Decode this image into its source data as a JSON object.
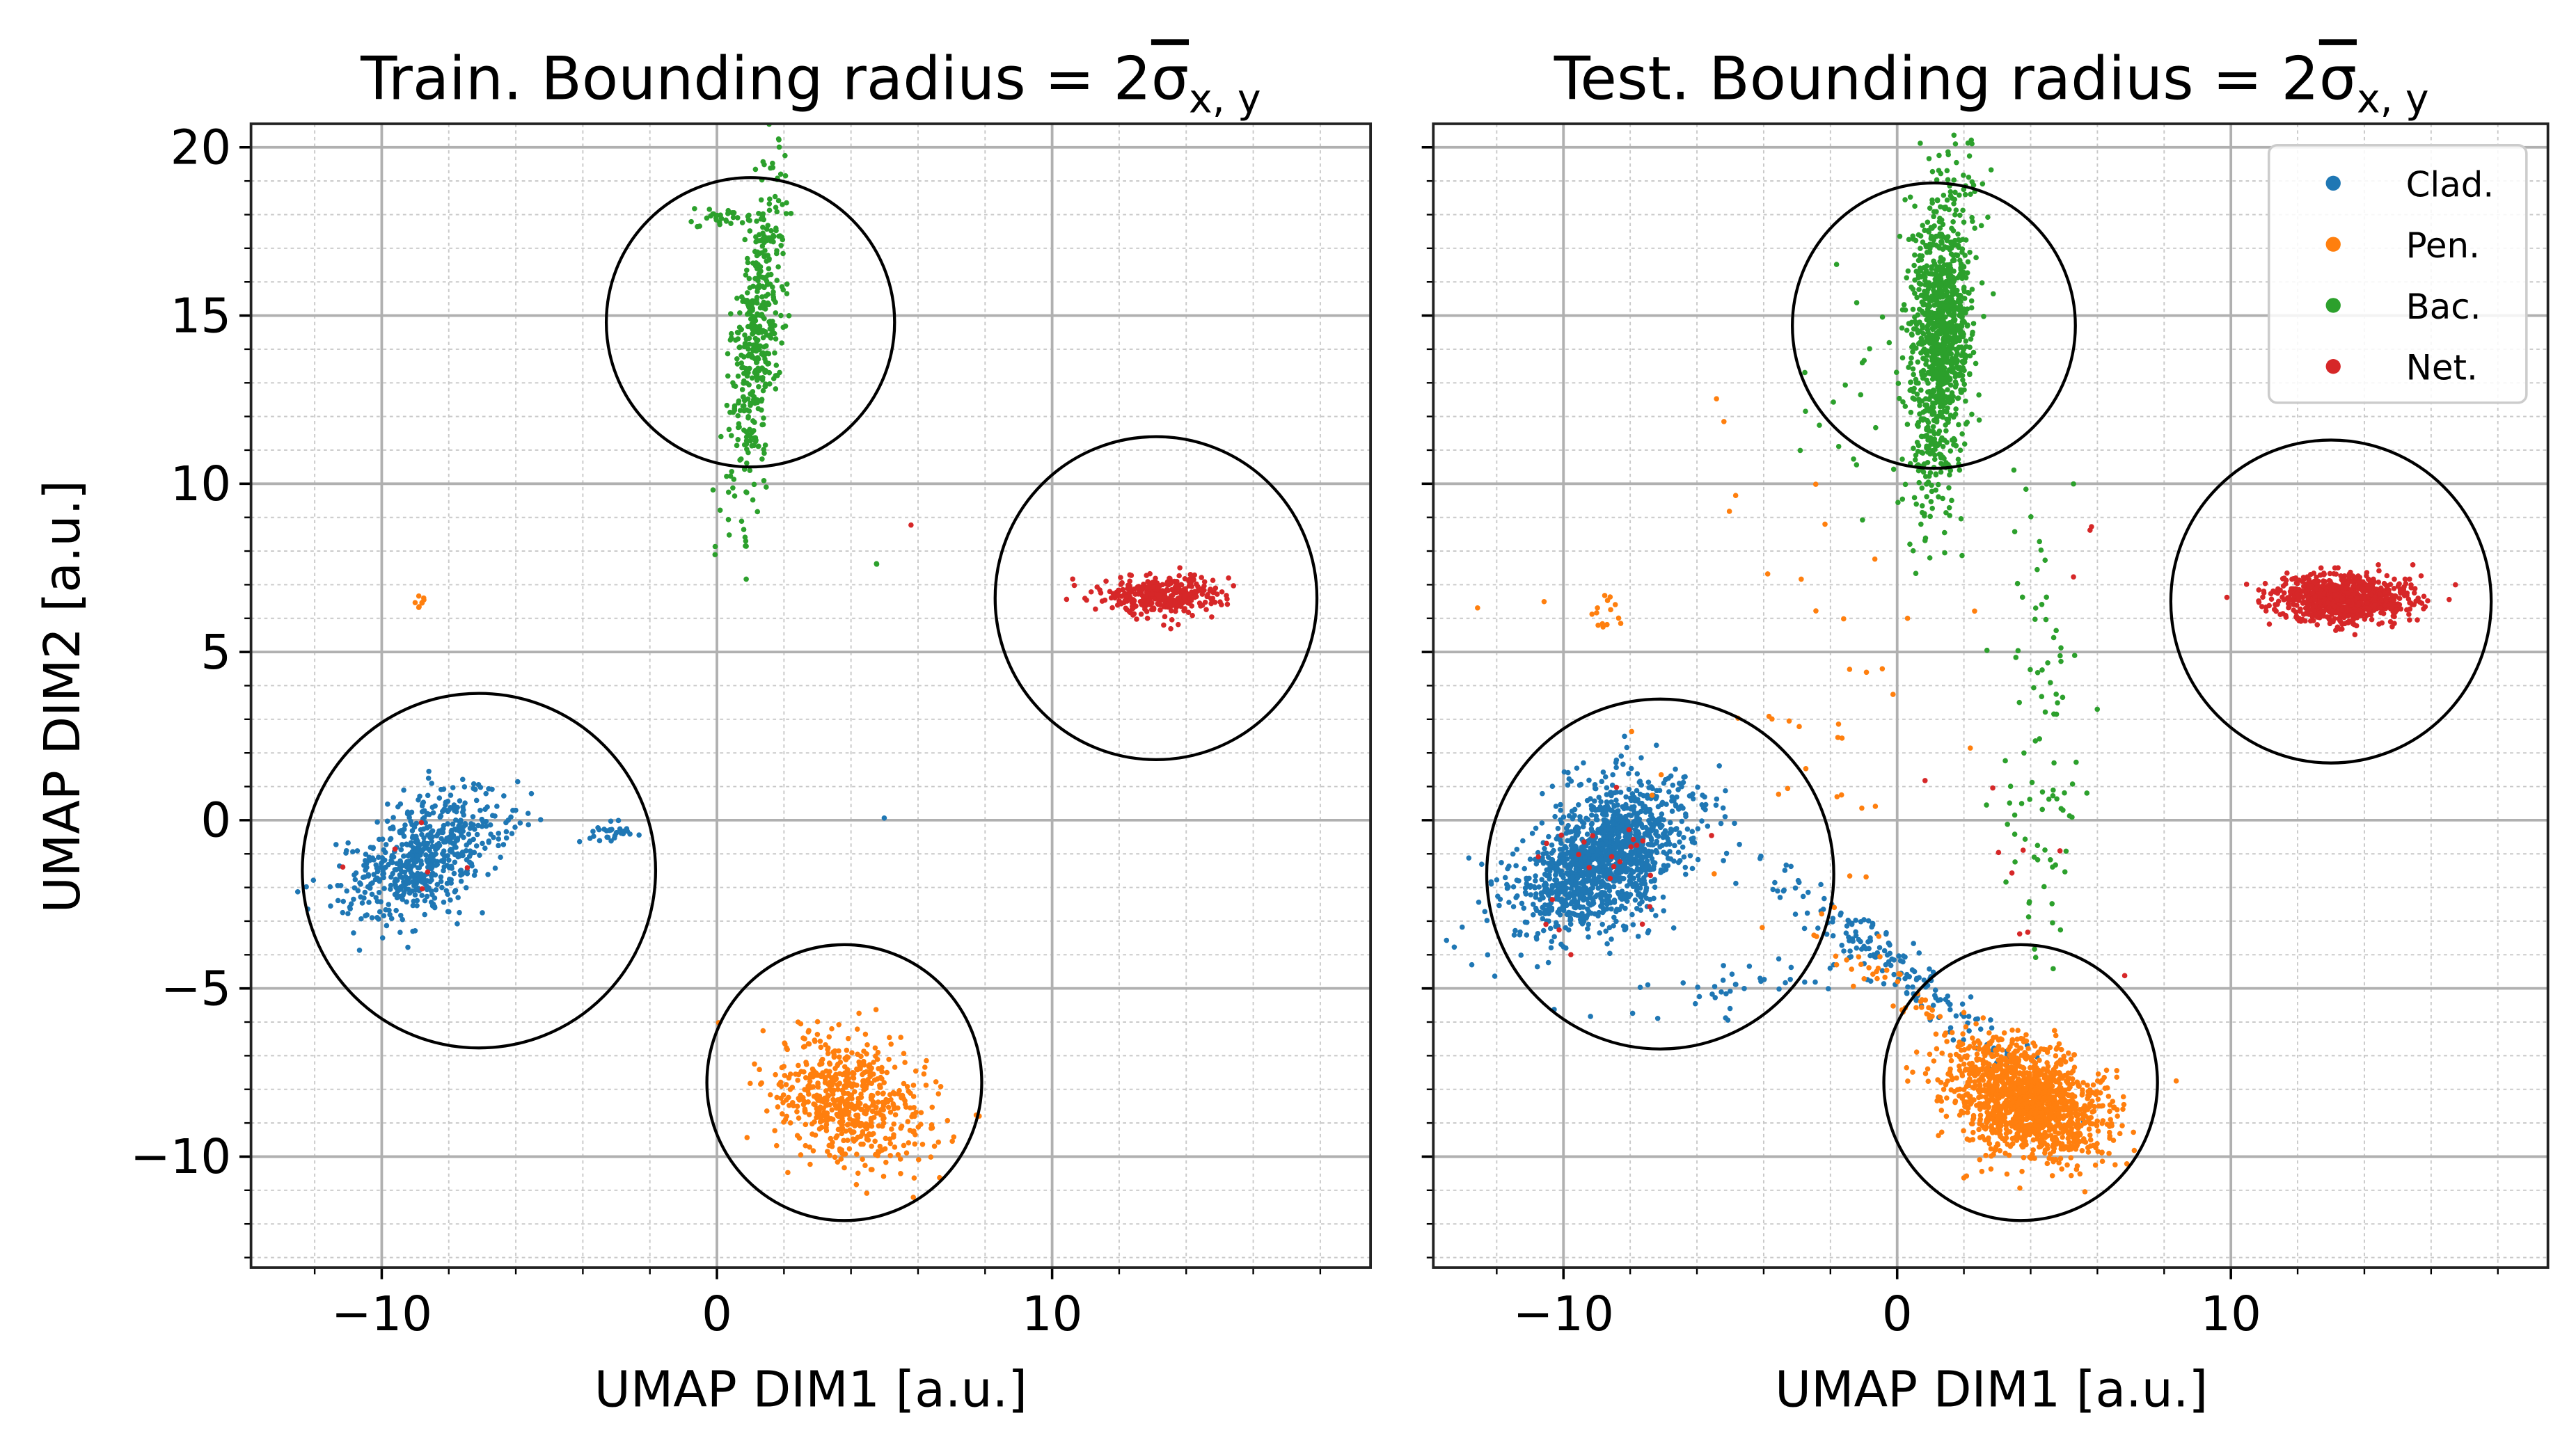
{
  "chart_data": [
    {
      "type": "scatter",
      "panel": "train",
      "title": {
        "text": "Train. Bounding radius = 2",
        "symbol": "σ",
        "subscript": "x, y"
      },
      "xlabel": "UMAP DIM1 [a.u.]",
      "ylabel": "UMAP DIM2 [a.u.]",
      "xlim": [
        -13.9,
        19.5
      ],
      "ylim": [
        -13.3,
        20.7
      ],
      "xticks": [
        -10,
        0,
        10
      ],
      "xtick_labels": [
        "−10",
        "0",
        "10"
      ],
      "yticks": [
        -10,
        -5,
        0,
        5,
        10,
        15,
        20
      ],
      "ytick_labels": [
        "−10",
        "−5",
        "0",
        "5",
        "10",
        "15",
        "20"
      ],
      "grid": {
        "major": true,
        "minor": true,
        "x_minor_step": 2,
        "y_minor_step": 1
      },
      "legend": null,
      "circles": [
        {
          "class": "Bac.",
          "cx": 1.0,
          "cy": 14.8,
          "r": 4.3
        },
        {
          "class": "Net.",
          "cx": 13.1,
          "cy": 6.6,
          "r": 4.8
        },
        {
          "class": "Clad.",
          "cx": -7.1,
          "cy": -1.5,
          "r": 5.27
        },
        {
          "class": "Pen.",
          "cx": 3.8,
          "cy": -7.8,
          "r": 4.1
        }
      ],
      "clusters": [
        {
          "class": "Bac.",
          "cx": 1.2,
          "cy": 14.4,
          "sx": 0.35,
          "sy": 2.3,
          "rot": -5,
          "n": 450
        },
        {
          "class": "Bac.",
          "cx": 0.3,
          "cy": 17.9,
          "sx": 0.5,
          "sy": 0.15,
          "rot": 0,
          "n": 30
        },
        {
          "class": "Net.",
          "cx": 13.3,
          "cy": 6.7,
          "sx": 0.9,
          "sy": 0.3,
          "rot": 0,
          "n": 350
        },
        {
          "class": "Clad.",
          "cx": -8.7,
          "cy": -1.0,
          "sx": 1.4,
          "sy": 0.75,
          "rot": 35,
          "n": 600
        },
        {
          "class": "Clad.",
          "cx": -3.0,
          "cy": -0.4,
          "sx": 0.35,
          "sy": 0.2,
          "rot": 0,
          "n": 30
        },
        {
          "class": "Pen.",
          "cx": 3.9,
          "cy": -8.3,
          "sx": 1.2,
          "sy": 0.85,
          "rot": -25,
          "n": 600
        },
        {
          "class": "Pen.",
          "cx": -8.9,
          "cy": 6.5,
          "sx": 0.1,
          "sy": 0.1,
          "rot": 0,
          "n": 8
        },
        {
          "class": "Net.",
          "cx": 5.8,
          "cy": 8.8,
          "sx": 0.02,
          "sy": 0.02,
          "rot": 0,
          "n": 1
        },
        {
          "class": "Bac.",
          "cx": 4.8,
          "cy": 7.6,
          "sx": 0.03,
          "sy": 0.03,
          "rot": 0,
          "n": 2
        },
        {
          "class": "Clad.",
          "cx": 5.0,
          "cy": 0.1,
          "sx": 0.02,
          "sy": 0.02,
          "rot": 0,
          "n": 1
        },
        {
          "class": "Net.",
          "cx": -9.0,
          "cy": -1.0,
          "sx": 1.0,
          "sy": 0.8,
          "rot": 0,
          "n": 6
        }
      ]
    },
    {
      "type": "scatter",
      "panel": "test",
      "title": {
        "text": "Test. Bounding radius = 2",
        "symbol": "σ",
        "subscript": "x, y"
      },
      "xlabel": "UMAP DIM1 [a.u.]",
      "ylabel": "",
      "xlim": [
        -13.9,
        19.5
      ],
      "ylim": [
        -13.3,
        20.7
      ],
      "xticks": [
        -10,
        0,
        10
      ],
      "xtick_labels": [
        "−10",
        "0",
        "10"
      ],
      "yticks": [
        -10,
        -5,
        0,
        5,
        10,
        15,
        20
      ],
      "ytick_labels": [],
      "grid": {
        "major": true,
        "minor": true,
        "x_minor_step": 2,
        "y_minor_step": 1
      },
      "legend": {
        "placement": "top-right",
        "entries": [
          "Clad.",
          "Pen.",
          "Bac.",
          "Net."
        ]
      },
      "circles": [
        {
          "class": "Bac.",
          "cx": 1.1,
          "cy": 14.7,
          "r": 4.24
        },
        {
          "class": "Net.",
          "cx": 13.0,
          "cy": 6.5,
          "r": 4.8
        },
        {
          "class": "Clad.",
          "cx": -7.1,
          "cy": -1.6,
          "r": 5.2
        },
        {
          "class": "Pen.",
          "cx": 3.7,
          "cy": -7.8,
          "r": 4.1
        }
      ],
      "clusters": [
        {
          "class": "Bac.",
          "cx": 1.3,
          "cy": 14.4,
          "sx": 0.45,
          "sy": 2.3,
          "rot": -3,
          "n": 1100
        },
        {
          "class": "Net.",
          "cx": 13.3,
          "cy": 6.6,
          "sx": 1.0,
          "sy": 0.35,
          "rot": 0,
          "n": 900
        },
        {
          "class": "Clad.",
          "cx": -8.8,
          "cy": -1.1,
          "sx": 1.4,
          "sy": 0.85,
          "rot": 35,
          "n": 1400
        },
        {
          "class": "Clad.",
          "cx": -0.5,
          "cy": -4.0,
          "sx": 2.6,
          "sy": 0.35,
          "rot": -38,
          "n": 180
        },
        {
          "class": "Clad.",
          "cx": -5.0,
          "cy": -5.0,
          "sx": 2.0,
          "sy": 0.4,
          "rot": 5,
          "n": 40
        },
        {
          "class": "Pen.",
          "cx": 3.9,
          "cy": -8.3,
          "sx": 1.2,
          "sy": 0.8,
          "rot": -20,
          "n": 1400
        },
        {
          "class": "Pen.",
          "cx": 0.0,
          "cy": -5.0,
          "sx": 2.0,
          "sy": 0.35,
          "rot": -38,
          "n": 60
        },
        {
          "class": "Pen.",
          "cx": -3.0,
          "cy": 4.0,
          "sx": 3.0,
          "sy": 4.0,
          "rot": 0,
          "n": 45
        },
        {
          "class": "Pen.",
          "cx": -8.9,
          "cy": 6.3,
          "sx": 0.2,
          "sy": 0.3,
          "rot": 0,
          "n": 12
        },
        {
          "class": "Bac.",
          "cx": 4.4,
          "cy": 2.5,
          "sx": 0.7,
          "sy": 3.8,
          "rot": 0,
          "n": 90
        },
        {
          "class": "Bac.",
          "cx": -1.5,
          "cy": 13.0,
          "sx": 0.8,
          "sy": 2.5,
          "rot": 0,
          "n": 20
        },
        {
          "class": "Net.",
          "cx": -9.0,
          "cy": -1.5,
          "sx": 1.2,
          "sy": 1.0,
          "rot": 0,
          "n": 25
        },
        {
          "class": "Net.",
          "cx": 3.5,
          "cy": 0.0,
          "sx": 2.0,
          "sy": 3.0,
          "rot": 0,
          "n": 10
        },
        {
          "class": "Net.",
          "cx": 5.8,
          "cy": 8.7,
          "sx": 0.05,
          "sy": 0.05,
          "rot": 0,
          "n": 2
        }
      ]
    }
  ],
  "colors": {
    "Clad.": "#1f77b4",
    "Pen.": "#ff7f0e",
    "Bac.": "#2ca02c",
    "Net.": "#d62728"
  }
}
